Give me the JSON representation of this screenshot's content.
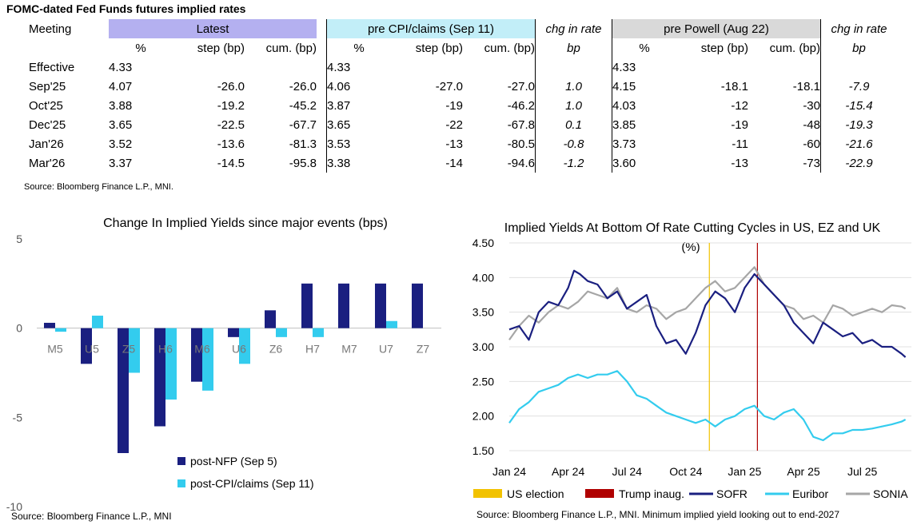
{
  "table": {
    "title": "FOMC-dated Fed Funds futures implied rates",
    "header": {
      "meeting": "Meeting",
      "latest": "Latest",
      "pre_cpi": "pre CPI/claims (Sep 11)",
      "chg1": "chg in rate",
      "pre_powell": "pre Powell (Aug 22)",
      "chg2": "chg in rate"
    },
    "subheader": {
      "pct": "%",
      "step": "step (bp)",
      "cum": "cum. (bp)",
      "bp": "bp"
    },
    "rows": [
      {
        "meeting": "Effective",
        "l_pct": "4.33",
        "l_step": "",
        "l_cum": "",
        "c_pct": "4.33",
        "c_step": "",
        "c_cum": "",
        "chg1": "",
        "p_pct": "4.33",
        "p_step": "",
        "p_cum": "",
        "chg2": ""
      },
      {
        "meeting": "Sep'25",
        "l_pct": "4.07",
        "l_step": "-26.0",
        "l_cum": "-26.0",
        "c_pct": "4.06",
        "c_step": "-27.0",
        "c_cum": "-27.0",
        "chg1": "1.0",
        "p_pct": "4.15",
        "p_step": "-18.1",
        "p_cum": "-18.1",
        "chg2": "-7.9"
      },
      {
        "meeting": "Oct'25",
        "l_pct": "3.88",
        "l_step": "-19.2",
        "l_cum": "-45.2",
        "c_pct": "3.87",
        "c_step": "-19",
        "c_cum": "-46.2",
        "chg1": "1.0",
        "p_pct": "4.03",
        "p_step": "-12",
        "p_cum": "-30",
        "chg2": "-15.4"
      },
      {
        "meeting": "Dec'25",
        "l_pct": "3.65",
        "l_step": "-22.5",
        "l_cum": "-67.7",
        "c_pct": "3.65",
        "c_step": "-22",
        "c_cum": "-67.8",
        "chg1": "0.1",
        "p_pct": "3.85",
        "p_step": "-19",
        "p_cum": "-48",
        "chg2": "-19.3"
      },
      {
        "meeting": "Jan'26",
        "l_pct": "3.52",
        "l_step": "-13.6",
        "l_cum": "-81.3",
        "c_pct": "3.53",
        "c_step": "-13",
        "c_cum": "-80.5",
        "chg1": "-0.8",
        "p_pct": "3.73",
        "p_step": "-11",
        "p_cum": "-60",
        "chg2": "-21.6"
      },
      {
        "meeting": "Mar'26",
        "l_pct": "3.37",
        "l_step": "-14.5",
        "l_cum": "-95.8",
        "c_pct": "3.38",
        "c_step": "-14",
        "c_cum": "-94.6",
        "chg1": "-1.2",
        "p_pct": "3.60",
        "p_step": "-13",
        "p_cum": "-73",
        "chg2": "-22.9"
      }
    ],
    "source": "Source: Bloomberg Finance L.P., MNI."
  },
  "chart_data": [
    {
      "type": "bar",
      "title": "Change In Implied Yields since major events (bps)",
      "categories": [
        "M5",
        "U5",
        "Z5",
        "H6",
        "M6",
        "U6",
        "Z6",
        "H7",
        "M7",
        "U7",
        "Z7"
      ],
      "series": [
        {
          "name": "post-NFP (Sep 5)",
          "color": "#1a1f80",
          "values": [
            0.3,
            -2.0,
            -7.0,
            -5.5,
            -3.0,
            -0.5,
            1.0,
            2.5,
            2.5,
            2.5,
            2.5
          ]
        },
        {
          "name": "post-CPI/claims (Sep 11)",
          "color": "#33ccee",
          "values": [
            -0.2,
            0.7,
            -2.5,
            -4.0,
            -3.5,
            -2.0,
            -0.5,
            -0.5,
            0,
            0.4,
            0
          ]
        }
      ],
      "ylim": [
        -10,
        5
      ],
      "yticks": [
        "5",
        "0",
        "-5",
        "-10"
      ],
      "legend": "bottom-center",
      "source": "Source: Bloomberg Finance L.P., MNI"
    },
    {
      "type": "line",
      "title": "Implied Yields At Bottom Of Rate Cutting Cycles in US, EZ and UK",
      "subtitle": "(%)",
      "ylim": [
        1.5,
        4.5
      ],
      "yticks": [
        "4.50",
        "4.00",
        "3.50",
        "3.00",
        "2.50",
        "2.00",
        "1.50"
      ],
      "xticks": [
        "Jan 24",
        "Apr 24",
        "Jul 24",
        "Oct 24",
        "Jan 25",
        "Apr 25",
        "Jul 25"
      ],
      "x_range_months": [
        0,
        20.5
      ],
      "events": [
        {
          "name": "US election",
          "x_month": 10.2,
          "color": "#f2c200"
        },
        {
          "name": "Trump inaug.",
          "x_month": 12.65,
          "color": "#b00000"
        }
      ],
      "series": [
        {
          "name": "SOFR",
          "color": "#1a1f80",
          "x_month": [
            0,
            0.5,
            1,
            1.5,
            2,
            2.5,
            3,
            3.3,
            3.6,
            4,
            4.5,
            5,
            5.5,
            6,
            6.5,
            7,
            7.5,
            8,
            8.5,
            9,
            9.5,
            10,
            10.5,
            11,
            11.5,
            12,
            12.5,
            13,
            13.5,
            14,
            14.5,
            15,
            15.5,
            16,
            16.5,
            17,
            17.5,
            18,
            18.5,
            19,
            19.5,
            20,
            20.2
          ],
          "y": [
            3.25,
            3.3,
            3.1,
            3.5,
            3.65,
            3.6,
            3.85,
            4.1,
            4.05,
            3.95,
            3.9,
            3.7,
            3.8,
            3.55,
            3.65,
            3.75,
            3.3,
            3.05,
            3.1,
            2.9,
            3.2,
            3.6,
            3.8,
            3.7,
            3.5,
            3.85,
            4.05,
            3.9,
            3.75,
            3.6,
            3.35,
            3.2,
            3.05,
            3.35,
            3.25,
            3.15,
            3.2,
            3.05,
            3.1,
            3.0,
            3.0,
            2.9,
            2.85
          ]
        },
        {
          "name": "Euribor",
          "color": "#33ccee",
          "x_month": [
            0,
            0.5,
            1,
            1.5,
            2,
            2.5,
            3,
            3.5,
            4,
            4.5,
            5,
            5.5,
            6,
            6.5,
            7,
            7.5,
            8,
            8.5,
            9,
            9.5,
            10,
            10.5,
            11,
            11.5,
            12,
            12.5,
            13,
            13.5,
            14,
            14.5,
            15,
            15.5,
            16,
            16.5,
            17,
            17.5,
            18,
            18.5,
            19,
            19.5,
            20,
            20.2
          ],
          "y": [
            1.9,
            2.1,
            2.2,
            2.35,
            2.4,
            2.45,
            2.55,
            2.6,
            2.55,
            2.6,
            2.6,
            2.65,
            2.5,
            2.3,
            2.25,
            2.15,
            2.05,
            2.0,
            1.95,
            1.9,
            1.95,
            1.85,
            1.95,
            2.0,
            2.1,
            2.15,
            2.0,
            1.95,
            2.05,
            2.1,
            1.95,
            1.7,
            1.65,
            1.75,
            1.75,
            1.8,
            1.8,
            1.82,
            1.85,
            1.88,
            1.92,
            1.95
          ]
        },
        {
          "name": "SONIA",
          "color": "#a6a6a6",
          "x_month": [
            0,
            0.5,
            1,
            1.5,
            2,
            2.5,
            3,
            3.5,
            4,
            4.5,
            5,
            5.5,
            6,
            6.5,
            7,
            7.5,
            8,
            8.5,
            9,
            9.5,
            10,
            10.5,
            11,
            11.5,
            12,
            12.5,
            13,
            13.5,
            14,
            14.5,
            15,
            15.5,
            16,
            16.5,
            17,
            17.5,
            18,
            18.5,
            19,
            19.5,
            20,
            20.2
          ],
          "y": [
            3.1,
            3.3,
            3.45,
            3.35,
            3.5,
            3.6,
            3.55,
            3.65,
            3.8,
            3.75,
            3.7,
            3.85,
            3.55,
            3.5,
            3.6,
            3.55,
            3.4,
            3.5,
            3.55,
            3.7,
            3.85,
            3.95,
            3.8,
            3.85,
            4.0,
            4.15,
            3.9,
            3.75,
            3.6,
            3.55,
            3.4,
            3.45,
            3.35,
            3.6,
            3.55,
            3.45,
            3.5,
            3.55,
            3.5,
            3.6,
            3.58,
            3.55
          ]
        }
      ],
      "legend": "bottom",
      "source": "Source: Bloomberg Finance L.P., MNI. Minimum implied yield looking out to end-2027"
    }
  ]
}
